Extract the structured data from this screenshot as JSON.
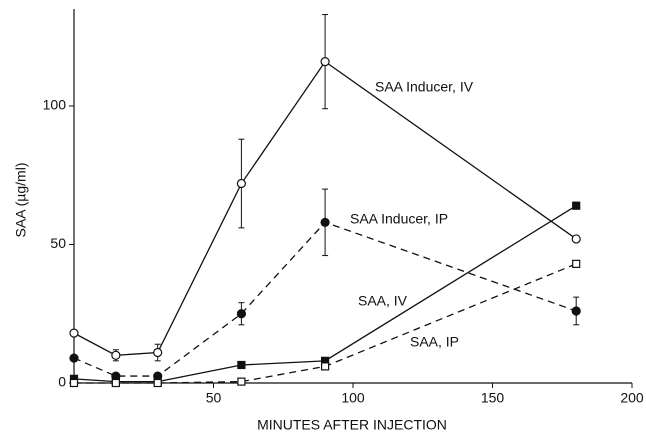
{
  "chart_data": {
    "type": "line",
    "x_label": "MINUTES AFTER INJECTION",
    "y_label": "SAA (µg/ml)",
    "x": [
      0,
      15,
      30,
      60,
      90,
      180
    ],
    "xlim": [
      0,
      200
    ],
    "xticks": [
      50,
      100,
      150,
      200
    ],
    "ylim": [
      0,
      135
    ],
    "yticks": [
      0,
      50,
      100
    ],
    "series": [
      {
        "name": "SAA Inducer, IV",
        "color": "#111111",
        "marker": "circle",
        "filled": false,
        "dashed": false,
        "values": [
          18,
          10,
          11,
          72,
          116,
          52
        ],
        "errors": [
          null,
          2,
          3,
          16,
          17,
          null
        ]
      },
      {
        "name": "SAA Inducer, IP",
        "color": "#111111",
        "marker": "circle",
        "filled": true,
        "dashed": true,
        "values": [
          9,
          2.5,
          2.5,
          25,
          58,
          26
        ],
        "errors": [
          null,
          null,
          null,
          4,
          12,
          5
        ]
      },
      {
        "name": "SAA, IV",
        "color": "#111111",
        "marker": "square",
        "filled": true,
        "dashed": false,
        "values": [
          1.5,
          0.5,
          0.5,
          6.5,
          8,
          64
        ],
        "errors": [
          null,
          null,
          null,
          null,
          null,
          null
        ]
      },
      {
        "name": "SAA, IP",
        "color": "#111111",
        "marker": "square",
        "filled": false,
        "dashed": true,
        "values": [
          0,
          0,
          0,
          0.5,
          6,
          43
        ],
        "errors": [
          null,
          null,
          null,
          null,
          null,
          null
        ]
      }
    ]
  }
}
